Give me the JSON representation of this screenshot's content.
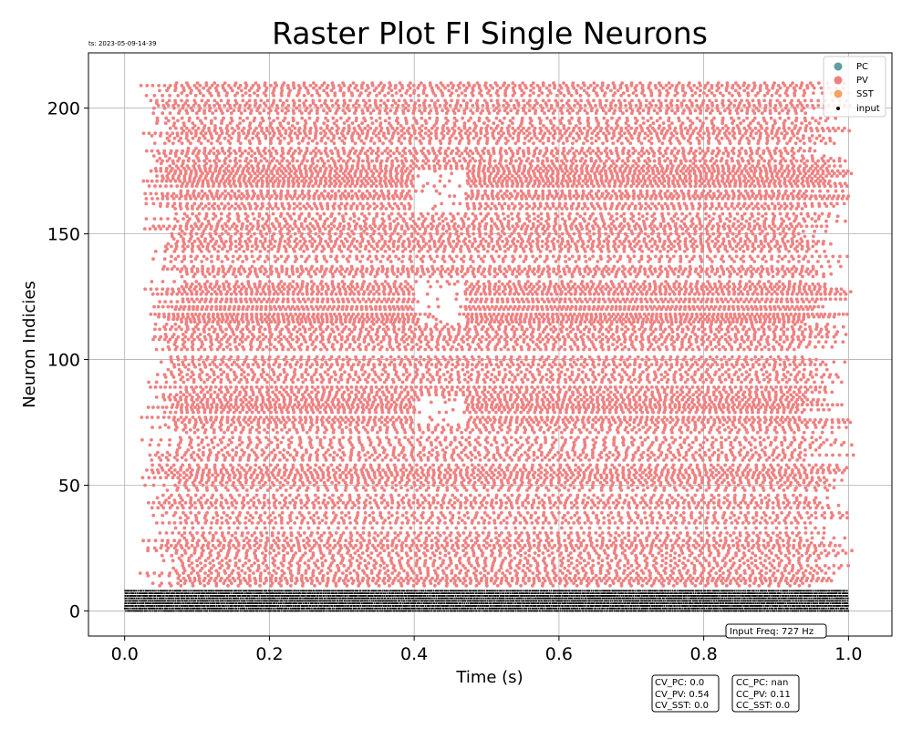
{
  "chart_data": {
    "type": "scatter",
    "title": "Raster Plot FI Single Neurons",
    "timestamp": "ts: 2023-05-09-14-39",
    "xlabel": "Time (s)",
    "ylabel": "Neuron Indicies",
    "xlim": [
      -0.05,
      1.06
    ],
    "ylim": [
      -10,
      222
    ],
    "xticks": [
      0.0,
      0.2,
      0.4,
      0.6,
      0.8,
      1.0
    ],
    "xtick_labels": [
      "0.0",
      "0.2",
      "0.4",
      "0.6",
      "0.8",
      "1.0"
    ],
    "yticks": [
      0,
      50,
      100,
      150,
      200
    ],
    "ytick_labels": [
      "0",
      "50",
      "100",
      "150",
      "200"
    ],
    "grid": true,
    "legend_position": "top-right",
    "series": [
      {
        "name": "PC",
        "color": "#5f9ea0",
        "neurons": [],
        "time_range": []
      },
      {
        "name": "PV",
        "color": "#f08080",
        "neurons": [
          10,
          210
        ],
        "time_range": [
          0.02,
          1.01
        ],
        "dense_bands": [
          [
            75,
            85
          ],
          [
            115,
            130
          ],
          [
            160,
            175
          ]
        ],
        "gaps": [
          [
            0.4,
            0.47
          ]
        ]
      },
      {
        "name": "SST",
        "color": "#f4a460",
        "neurons": [],
        "time_range": []
      },
      {
        "name": "input",
        "color": "#000000",
        "neurons": [
          0,
          8
        ],
        "time_range": [
          0.0,
          1.0
        ]
      }
    ],
    "annotations": {
      "input_freq": "Input Freq: 727 Hz",
      "cv_box": [
        "CV_PC: 0.0",
        "CV_PV: 0.54",
        "CV_SST: 0.0"
      ],
      "cc_box": [
        "CC_PC: nan",
        "CC_PV: 0.11",
        "CC_SST: 0.0"
      ]
    }
  }
}
